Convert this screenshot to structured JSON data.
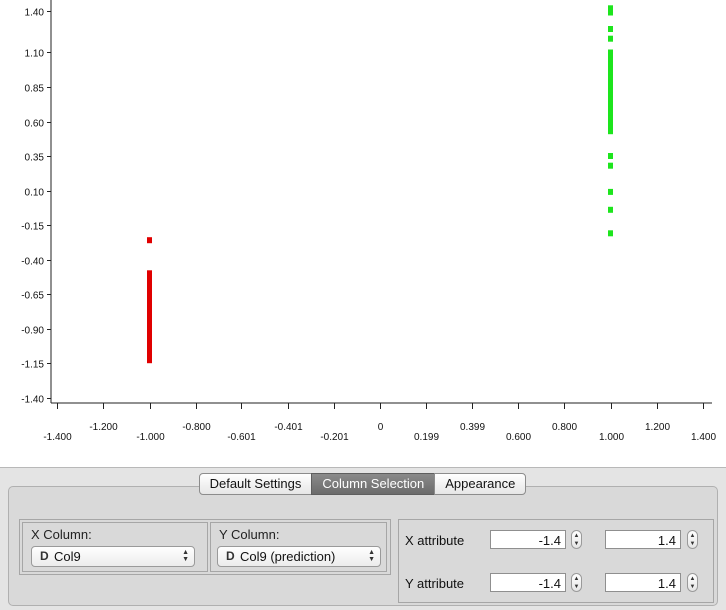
{
  "chart_data": {
    "type": "scatter",
    "xlim": [
      -1.45,
      1.45
    ],
    "ylim": [
      -1.42,
      1.45
    ],
    "x_ticks": [
      -1.4,
      -1.2,
      -1.0,
      -0.8,
      -0.601,
      -0.401,
      -0.201,
      0,
      0.199,
      0.399,
      0.6,
      0.8,
      1.0,
      1.2,
      1.4
    ],
    "x_tick_labels": [
      "-1.400",
      "-1.200",
      "-1.000",
      "-0.800",
      "-0.601",
      "-0.401",
      "-0.201",
      "0",
      "0.199",
      "0.399",
      "0.600",
      "0.800",
      "1.000",
      "1.200",
      "1.400"
    ],
    "y_ticks": [
      1.4,
      1.1,
      0.85,
      0.6,
      0.35,
      0.1,
      -0.15,
      -0.4,
      -0.65,
      -0.9,
      -1.15,
      -1.4
    ],
    "y_tick_labels": [
      "1.40",
      "1.10",
      "0.85",
      "0.60",
      "0.35",
      "0.10",
      "-0.15",
      "-0.40",
      "-0.65",
      "-0.90",
      "-1.15",
      "-1.40"
    ],
    "grid": false,
    "series": [
      {
        "color": "#e00000",
        "points": [
          [
            -1.0,
            -0.26
          ],
          [
            -1.0,
            -0.5
          ],
          [
            -1.0,
            -0.53
          ],
          [
            -1.0,
            -0.56
          ],
          [
            -1.0,
            -0.59
          ],
          [
            -1.0,
            -0.62
          ],
          [
            -1.0,
            -0.65
          ],
          [
            -1.0,
            -0.68
          ],
          [
            -1.0,
            -0.71
          ],
          [
            -1.0,
            -0.74
          ],
          [
            -1.0,
            -0.77
          ],
          [
            -1.0,
            -0.8
          ],
          [
            -1.0,
            -0.83
          ],
          [
            -1.0,
            -0.86
          ],
          [
            -1.0,
            -0.89
          ],
          [
            -1.0,
            -0.92
          ],
          [
            -1.0,
            -0.95
          ],
          [
            -1.0,
            -0.98
          ],
          [
            -1.0,
            -1.01
          ],
          [
            -1.0,
            -1.04
          ],
          [
            -1.0,
            -1.07
          ],
          [
            -1.0,
            -1.1
          ],
          [
            -1.0,
            -1.13
          ]
        ]
      },
      {
        "color": "#1de51d",
        "points": [
          [
            1.0,
            1.42
          ],
          [
            1.0,
            1.39
          ],
          [
            1.0,
            1.27
          ],
          [
            1.0,
            1.2
          ],
          [
            1.0,
            1.1
          ],
          [
            1.0,
            1.07
          ],
          [
            1.0,
            1.04
          ],
          [
            1.0,
            1.01
          ],
          [
            1.0,
            0.98
          ],
          [
            1.0,
            0.95
          ],
          [
            1.0,
            0.92
          ],
          [
            1.0,
            0.88
          ],
          [
            1.0,
            0.85
          ],
          [
            1.0,
            0.82
          ],
          [
            1.0,
            0.79
          ],
          [
            1.0,
            0.76
          ],
          [
            1.0,
            0.72
          ],
          [
            1.0,
            0.69
          ],
          [
            1.0,
            0.66
          ],
          [
            1.0,
            0.62
          ],
          [
            1.0,
            0.59
          ],
          [
            1.0,
            0.56
          ],
          [
            1.0,
            0.53
          ],
          [
            1.0,
            0.35
          ],
          [
            1.0,
            0.28
          ],
          [
            1.0,
            0.09
          ],
          [
            1.0,
            -0.04
          ],
          [
            1.0,
            -0.21
          ]
        ]
      }
    ]
  },
  "tabs": [
    {
      "label": "Default Settings",
      "active": false
    },
    {
      "label": "Column Selection",
      "active": true
    },
    {
      "label": "Appearance",
      "active": false
    }
  ],
  "x_column": {
    "label": "X Column:",
    "type_icon": "D",
    "value": "Col9"
  },
  "y_column": {
    "label": "Y Column:",
    "type_icon": "D",
    "value": "Col9 (prediction)"
  },
  "x_attribute": {
    "label": "X attribute",
    "min": "-1.4",
    "max": "1.4"
  },
  "y_attribute": {
    "label": "Y attribute",
    "min": "-1.4",
    "max": "1.4"
  }
}
